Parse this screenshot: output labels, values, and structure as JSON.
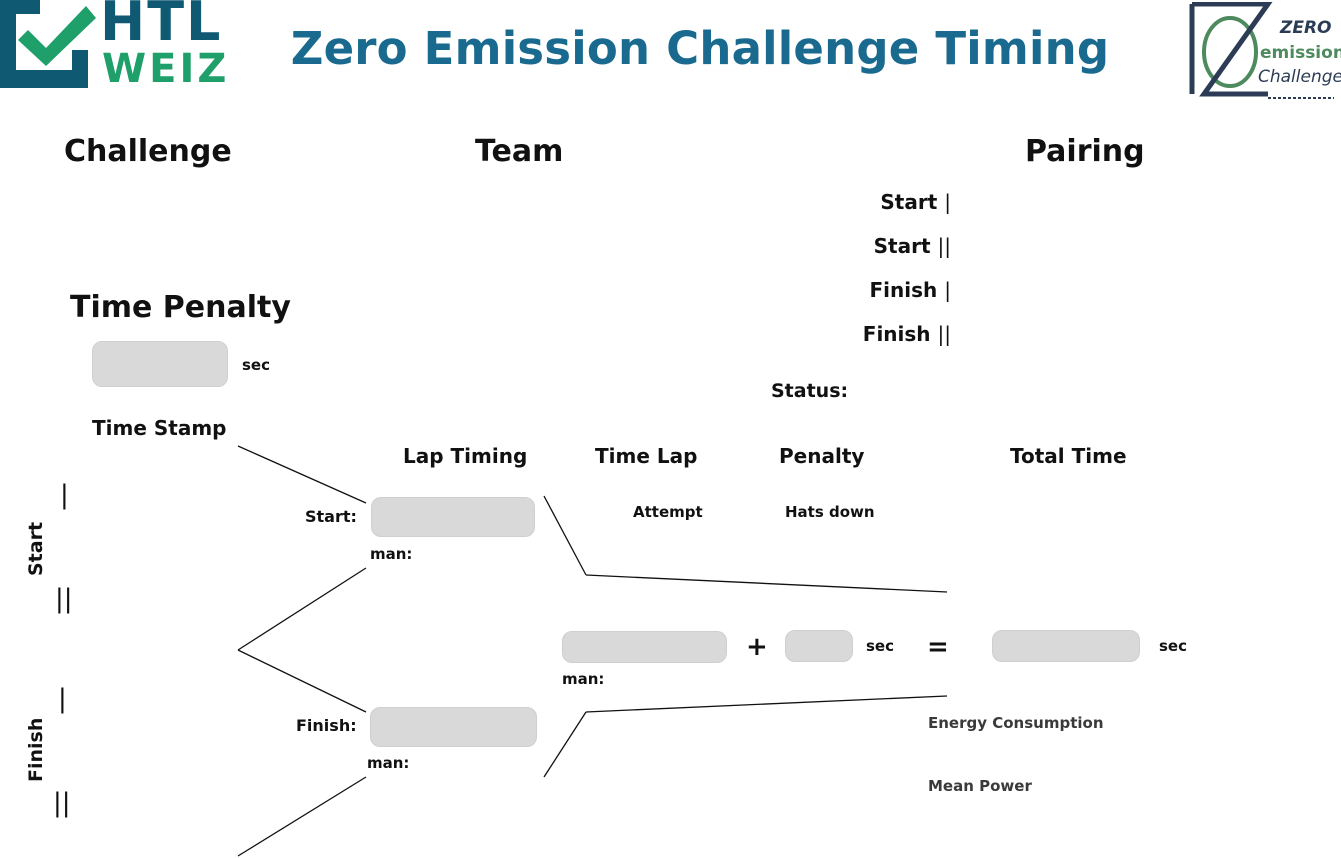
{
  "header": {
    "title": "Zero Emission Challenge Timing",
    "logo_left": {
      "line1": "HTL",
      "line2": "WEIZ"
    },
    "logo_right": {
      "line1": "ZERO",
      "line2": "emission",
      "line3": "Challenge"
    }
  },
  "sections": {
    "challenge": "Challenge",
    "team": "Team",
    "pairing": "Pairing"
  },
  "pairing": {
    "start1": "Start",
    "start2": "Start",
    "finish1": "Finish",
    "finish2": "Finish",
    "pipe1": "|",
    "pipe2": "||",
    "status_label": "Status:"
  },
  "time_penalty": {
    "heading": "Time Penalty",
    "value": "",
    "unit": "sec"
  },
  "time_stamp": {
    "heading": "Time Stamp",
    "start_label": "Start",
    "finish_label": "Finish",
    "bar1": "|",
    "bar2": "||"
  },
  "lap_timing": {
    "heading": "Lap Timing",
    "start_label": "Start:",
    "finish_label": "Finish:",
    "man_label": "man:"
  },
  "time_lap": {
    "heading": "Time Lap",
    "attempt_label": "Attempt",
    "man_label": "man:"
  },
  "penalty": {
    "heading": "Penalty",
    "hats_down_label": "Hats down",
    "unit": "sec",
    "plus": "+"
  },
  "total_time": {
    "heading": "Total Time",
    "equals": "=",
    "unit": "sec",
    "energy_label": "Energy Consumption",
    "mean_power_label": "Mean Power"
  },
  "colors": {
    "title": "#1a6a8f",
    "logo_dark": "#0f5a72",
    "logo_green": "#1fa06a",
    "field": "#d9d9d9"
  }
}
